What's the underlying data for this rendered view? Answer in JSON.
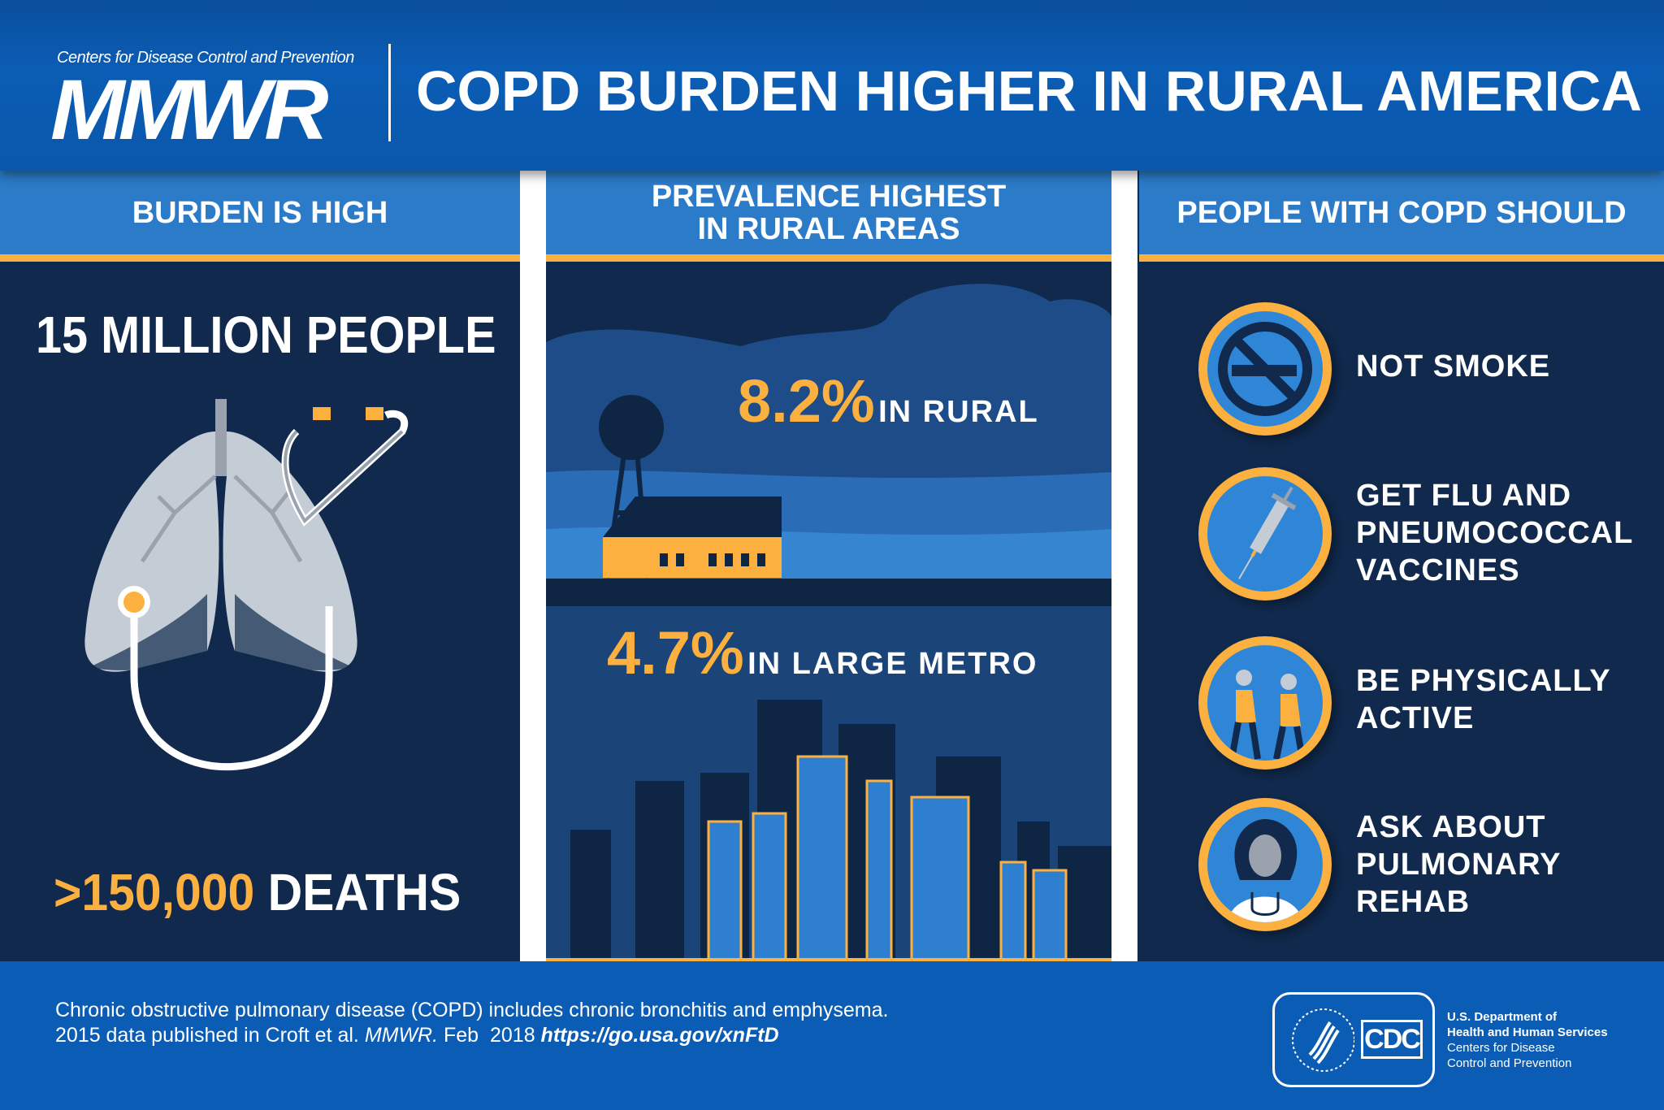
{
  "header": {
    "org": "Centers for Disease Control and Prevention",
    "logo": "MMWR",
    "title": "COPD BURDEN HIGHER IN RURAL AMERICA"
  },
  "columns": [
    {
      "heading": "BURDEN IS HIGH",
      "people": "15 MILLION PEOPLE",
      "deaths_number": ">150,000",
      "deaths_label": "DEATHS"
    },
    {
      "heading_line1": "PREVALENCE HIGHEST",
      "heading_line2": "IN RURAL AREAS",
      "rural_value": "8.2%",
      "rural_label": "IN RURAL",
      "metro_value": "4.7%",
      "metro_label": "IN LARGE METRO"
    },
    {
      "heading": "PEOPLE WITH COPD SHOULD",
      "actions": [
        {
          "icon": "no-smoking-icon",
          "lines": [
            "NOT SMOKE"
          ]
        },
        {
          "icon": "syringe-icon",
          "lines": [
            "GET FLU AND",
            "PNEUMOCOCCAL",
            "VACCINES"
          ]
        },
        {
          "icon": "exercise-icon",
          "lines": [
            "BE PHYSICALLY",
            "ACTIVE"
          ]
        },
        {
          "icon": "doctor-icon",
          "lines": [
            "ASK ABOUT",
            "PULMONARY",
            "REHAB"
          ]
        }
      ]
    }
  ],
  "footer": {
    "line1": "Chronic obstructive pulmonary disease (COPD) includes chronic bronchitis and emphysema.",
    "line2_a": "2015 data published in Croft et al. ",
    "line2_journal": "MMWR.",
    "line2_b": " Feb  2018 ",
    "link": "https://go.usa.gov/xnFtD",
    "logo_cdc": "CDC",
    "hhs_line1": "U.S. Department of",
    "hhs_line2": "Health and Human Services",
    "cdc_line1": "Centers for Disease",
    "cdc_line2": "Control and Prevention"
  },
  "colors": {
    "header": "#0b5cb4",
    "section": "#2b7bc8",
    "accent": "#fbb040",
    "body": "#10294c"
  }
}
